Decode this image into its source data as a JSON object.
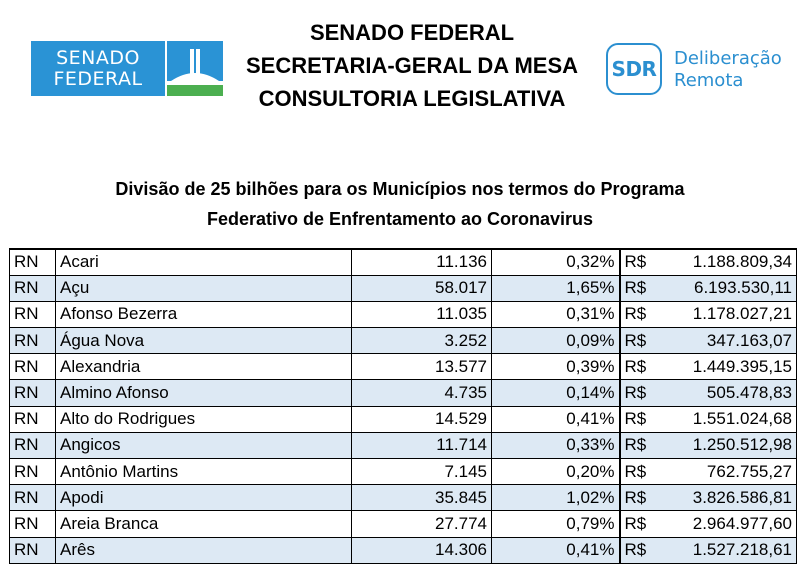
{
  "header": {
    "logo_left": {
      "line1": "SENADO",
      "line2": "FEDERAL"
    },
    "title_lines": [
      "SENADO FEDERAL",
      "SECRETARIA-GERAL DA MESA",
      "CONSULTORIA LEGISLATIVA"
    ],
    "sdr_logo": "SDR",
    "sdr_text": {
      "line1": "Deliberação",
      "line2": "Remota"
    }
  },
  "subtitle": {
    "line1": "Divisão de 25 bilhões para os Municípios nos termos do Programa",
    "line2": "Federativo de Enfrentamento ao Coronavirus"
  },
  "table": {
    "rows": [
      {
        "uf": "RN",
        "municipio": "Acari",
        "populacao": "11.136",
        "percentual": "0,32%",
        "moeda": "R$",
        "valor": "1.188.809,34"
      },
      {
        "uf": "RN",
        "municipio": "Açu",
        "populacao": "58.017",
        "percentual": "1,65%",
        "moeda": "R$",
        "valor": "6.193.530,11"
      },
      {
        "uf": "RN",
        "municipio": "Afonso Bezerra",
        "populacao": "11.035",
        "percentual": "0,31%",
        "moeda": "R$",
        "valor": "1.178.027,21"
      },
      {
        "uf": "RN",
        "municipio": "Água Nova",
        "populacao": "3.252",
        "percentual": "0,09%",
        "moeda": "R$",
        "valor": "347.163,07"
      },
      {
        "uf": "RN",
        "municipio": "Alexandria",
        "populacao": "13.577",
        "percentual": "0,39%",
        "moeda": "R$",
        "valor": "1.449.395,15"
      },
      {
        "uf": "RN",
        "municipio": "Almino Afonso",
        "populacao": "4.735",
        "percentual": "0,14%",
        "moeda": "R$",
        "valor": "505.478,83"
      },
      {
        "uf": "RN",
        "municipio": "Alto do Rodrigues",
        "populacao": "14.529",
        "percentual": "0,41%",
        "moeda": "R$",
        "valor": "1.551.024,68"
      },
      {
        "uf": "RN",
        "municipio": "Angicos",
        "populacao": "11.714",
        "percentual": "0,33%",
        "moeda": "R$",
        "valor": "1.250.512,98"
      },
      {
        "uf": "RN",
        "municipio": "Antônio Martins",
        "populacao": "7.145",
        "percentual": "0,20%",
        "moeda": "R$",
        "valor": "762.755,27"
      },
      {
        "uf": "RN",
        "municipio": "Apodi",
        "populacao": "35.845",
        "percentual": "1,02%",
        "moeda": "R$",
        "valor": "3.826.586,81"
      },
      {
        "uf": "RN",
        "municipio": "Areia Branca",
        "populacao": "27.774",
        "percentual": "0,79%",
        "moeda": "R$",
        "valor": "2.964.977,60"
      },
      {
        "uf": "RN",
        "municipio": "Arês",
        "populacao": "14.306",
        "percentual": "0,41%",
        "moeda": "R$",
        "valor": "1.527.218,61"
      }
    ]
  }
}
